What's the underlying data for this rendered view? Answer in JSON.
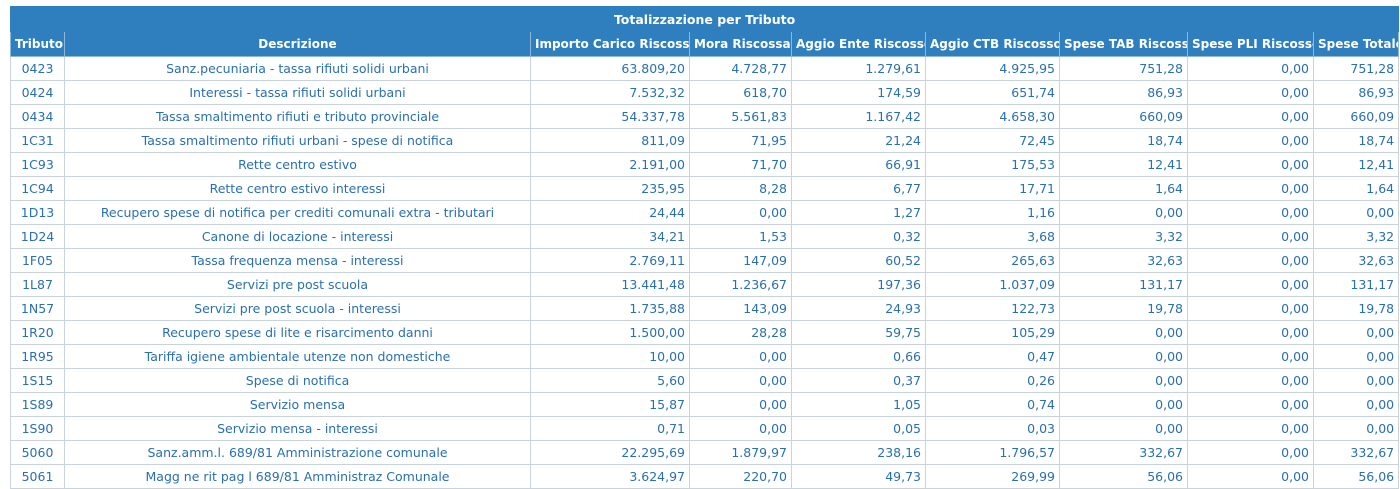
{
  "table": {
    "caption": "Totalizzazione per Tributo",
    "headers": [
      "Tributo",
      "Descrizione",
      "Importo Carico Riscosso",
      "Mora Riscossa",
      "Aggio Ente Riscosso",
      "Aggio CTB Riscosso",
      "Spese TAB Riscosse",
      "Spese PLI Riscosse",
      "Spese Totale"
    ],
    "rows": [
      [
        "0423",
        "Sanz.pecuniaria - tassa rifiuti solidi urbani",
        "63.809,20",
        "4.728,77",
        "1.279,61",
        "4.925,95",
        "751,28",
        "0,00",
        "751,28"
      ],
      [
        "0424",
        "Interessi - tassa rifiuti solidi urbani",
        "7.532,32",
        "618,70",
        "174,59",
        "651,74",
        "86,93",
        "0,00",
        "86,93"
      ],
      [
        "0434",
        "Tassa smaltimento rifiuti e tributo provinciale",
        "54.337,78",
        "5.561,83",
        "1.167,42",
        "4.658,30",
        "660,09",
        "0,00",
        "660,09"
      ],
      [
        "1C31",
        "Tassa smaltimento rifiuti urbani - spese di notifica",
        "811,09",
        "71,95",
        "21,24",
        "72,45",
        "18,74",
        "0,00",
        "18,74"
      ],
      [
        "1C93",
        "Rette centro estivo",
        "2.191,00",
        "71,70",
        "66,91",
        "175,53",
        "12,41",
        "0,00",
        "12,41"
      ],
      [
        "1C94",
        "Rette centro estivo interessi",
        "235,95",
        "8,28",
        "6,77",
        "17,71",
        "1,64",
        "0,00",
        "1,64"
      ],
      [
        "1D13",
        "Recupero spese di notifica per crediti comunali extra - tributari",
        "24,44",
        "0,00",
        "1,27",
        "1,16",
        "0,00",
        "0,00",
        "0,00"
      ],
      [
        "1D24",
        "Canone di locazione - interessi",
        "34,21",
        "1,53",
        "0,32",
        "3,68",
        "3,32",
        "0,00",
        "3,32"
      ],
      [
        "1F05",
        "Tassa frequenza mensa - interessi",
        "2.769,11",
        "147,09",
        "60,52",
        "265,63",
        "32,63",
        "0,00",
        "32,63"
      ],
      [
        "1L87",
        "Servizi pre post scuola",
        "13.441,48",
        "1.236,67",
        "197,36",
        "1.037,09",
        "131,17",
        "0,00",
        "131,17"
      ],
      [
        "1N57",
        "Servizi pre post scuola - interessi",
        "1.735,88",
        "143,09",
        "24,93",
        "122,73",
        "19,78",
        "0,00",
        "19,78"
      ],
      [
        "1R20",
        "Recupero spese di lite e risarcimento danni",
        "1.500,00",
        "28,28",
        "59,75",
        "105,29",
        "0,00",
        "0,00",
        "0,00"
      ],
      [
        "1R95",
        "Tariffa igiene ambientale utenze non domestiche",
        "10,00",
        "0,00",
        "0,66",
        "0,47",
        "0,00",
        "0,00",
        "0,00"
      ],
      [
        "1S15",
        "Spese di notifica",
        "5,60",
        "0,00",
        "0,37",
        "0,26",
        "0,00",
        "0,00",
        "0,00"
      ],
      [
        "1S89",
        "Servizio mensa",
        "15,87",
        "0,00",
        "1,05",
        "0,74",
        "0,00",
        "0,00",
        "0,00"
      ],
      [
        "1S90",
        "Servizio mensa - interessi",
        "0,71",
        "0,00",
        "0,05",
        "0,03",
        "0,00",
        "0,00",
        "0,00"
      ],
      [
        "5060",
        "Sanz.amm.l. 689/81 Amministrazione comunale",
        "22.295,69",
        "1.879,97",
        "238,16",
        "1.796,57",
        "332,67",
        "0,00",
        "332,67"
      ],
      [
        "5061",
        "Magg ne rit pag l 689/81 Amministraz Comunale",
        "3.624,97",
        "220,70",
        "49,73",
        "269,99",
        "56,06",
        "0,00",
        "56,06"
      ]
    ]
  }
}
